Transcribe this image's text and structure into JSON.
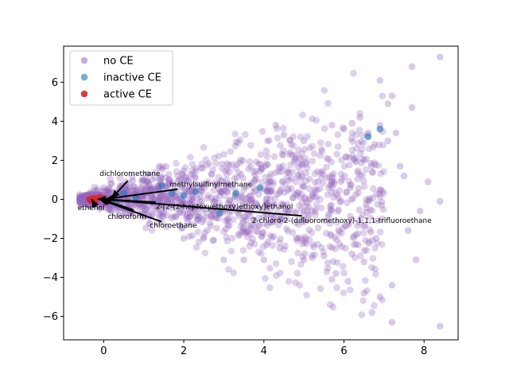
{
  "chart_data": {
    "type": "scatter",
    "title": "",
    "xlabel": "",
    "ylabel": "",
    "xlim": [
      -1.0,
      8.85
    ],
    "ylim": [
      -7.2,
      7.85
    ],
    "xticks": [
      0,
      2,
      4,
      6,
      8
    ],
    "yticks": [
      -6,
      -4,
      -2,
      0,
      2,
      4,
      6
    ],
    "grid": false,
    "legend_position": "top-left",
    "colors": {
      "no_ce": "#9467bd",
      "inactive_ce": "#1f77b4",
      "active_ce": "#d62728"
    },
    "series": [
      {
        "name": "no CE",
        "color": "#9467bd",
        "alpha": 0.35,
        "points": [
          [
            8.4,
            7.3
          ],
          [
            7.7,
            6.8
          ],
          [
            6.9,
            6.1
          ],
          [
            7.2,
            5.3
          ],
          [
            7.1,
            4.9
          ],
          [
            7.7,
            4.7
          ],
          [
            6.4,
            4.2
          ],
          [
            6.2,
            3.9
          ],
          [
            5.7,
            3.8
          ],
          [
            6.9,
            3.8
          ],
          [
            7.3,
            3.4
          ],
          [
            6.6,
            3.4
          ],
          [
            7.1,
            3.0
          ],
          [
            5.0,
            3.0
          ],
          [
            8.4,
            -0.1
          ],
          [
            7.9,
            -0.6
          ],
          [
            7.6,
            -1.6
          ],
          [
            8.4,
            -6.5
          ],
          [
            7.2,
            -6.3
          ],
          [
            6.7,
            -5.8
          ],
          [
            6.9,
            -5.0
          ],
          [
            6.5,
            -4.8
          ],
          [
            7.2,
            -4.4
          ],
          [
            6.1,
            -4.2
          ],
          [
            5.7,
            -4.1
          ],
          [
            5.8,
            -3.8
          ],
          [
            7.8,
            -3.1
          ],
          [
            6.5,
            -3.2
          ],
          [
            6.2,
            -2.8
          ],
          [
            5.0,
            -3.1
          ],
          [
            4.0,
            -3.1
          ],
          [
            3.5,
            -3.1
          ],
          [
            3.0,
            -3.1
          ],
          [
            4.3,
            3.8
          ],
          [
            6.0,
            3.6
          ],
          [
            4.5,
            3.3
          ],
          [
            8.1,
            0.9
          ],
          [
            7.5,
            1.2
          ],
          [
            0.0,
            0.6
          ],
          [
            0.4,
            -0.8
          ],
          [
            1.0,
            -0.9
          ],
          [
            2.0,
            -2.0
          ],
          [
            2.5,
            -2.0
          ],
          [
            4.1,
            -2.2
          ],
          [
            4.4,
            -2.5
          ],
          [
            5.5,
            -2.9
          ],
          [
            6.3,
            2.1
          ],
          [
            7.4,
            1.7
          ],
          [
            6.8,
            -2.0
          ]
        ]
      },
      {
        "name": "inactive CE",
        "color": "#1f77b4",
        "alpha": 0.6,
        "points": [
          [
            6.9,
            3.6
          ],
          [
            6.6,
            3.2
          ],
          [
            3.9,
            0.6
          ],
          [
            3.3,
            0.3
          ],
          [
            1.45,
            0.7
          ],
          [
            2.9,
            -0.7
          ],
          [
            0.5,
            0.3
          ],
          [
            0.8,
            0.1
          ],
          [
            1.7,
            0.3
          ],
          [
            2.3,
            0.4
          ],
          [
            2.0,
            0.2
          ],
          [
            0.3,
            -0.1
          ]
        ]
      },
      {
        "name": "active CE",
        "color": "#d62728",
        "alpha": 0.9,
        "points": [
          [
            -0.35,
            0.0
          ],
          [
            -0.25,
            0.05
          ],
          [
            -0.2,
            -0.05
          ],
          [
            -0.1,
            0.1
          ],
          [
            0.0,
            0.05
          ],
          [
            -0.3,
            -0.08
          ]
        ]
      }
    ],
    "annotations": [
      {
        "text": "dichloromethane",
        "label_at": [
          -0.1,
          1.2
        ],
        "anchor": "start",
        "arrow_from": [
          0.6,
          0.95
        ],
        "arrow_to": [
          0.2,
          0.05
        ]
      },
      {
        "text": "methylsulfinylmethane",
        "label_at": [
          1.65,
          0.65
        ],
        "anchor": "start",
        "arrow_from": [
          1.85,
          0.52
        ],
        "arrow_to": [
          0.05,
          0.02
        ]
      },
      {
        "text": "ethenol",
        "label_at": [
          -0.65,
          -0.55
        ],
        "anchor": "start",
        "arrow_from": [
          -0.2,
          -0.35
        ],
        "arrow_to": [
          -0.3,
          0.0
        ]
      },
      {
        "text": "chloroform",
        "label_at": [
          0.1,
          -1.0
        ],
        "anchor": "start",
        "arrow_from": [
          0.75,
          -0.55
        ],
        "arrow_to": [
          -0.05,
          0.0
        ]
      },
      {
        "text": "2-[2-(2-heptoxyethoxy)ethoxy]ethanol",
        "label_at": [
          1.3,
          -0.5
        ],
        "anchor": "start",
        "arrow_from": [
          1.3,
          -0.15
        ],
        "arrow_to": [
          -0.15,
          0.02
        ]
      },
      {
        "text": "chloroethane",
        "label_at": [
          1.15,
          -1.45
        ],
        "anchor": "start",
        "arrow_from": [
          1.45,
          -1.15
        ],
        "arrow_to": [
          -0.1,
          0.0
        ]
      },
      {
        "text": "2-chloro-2-(difluoromethoxy)-1,1,1-trifluoroethane",
        "label_at": [
          3.7,
          -1.2
        ],
        "anchor": "start",
        "arrow_from": [
          4.95,
          -0.85
        ],
        "arrow_to": [
          0.0,
          0.0
        ]
      }
    ]
  }
}
